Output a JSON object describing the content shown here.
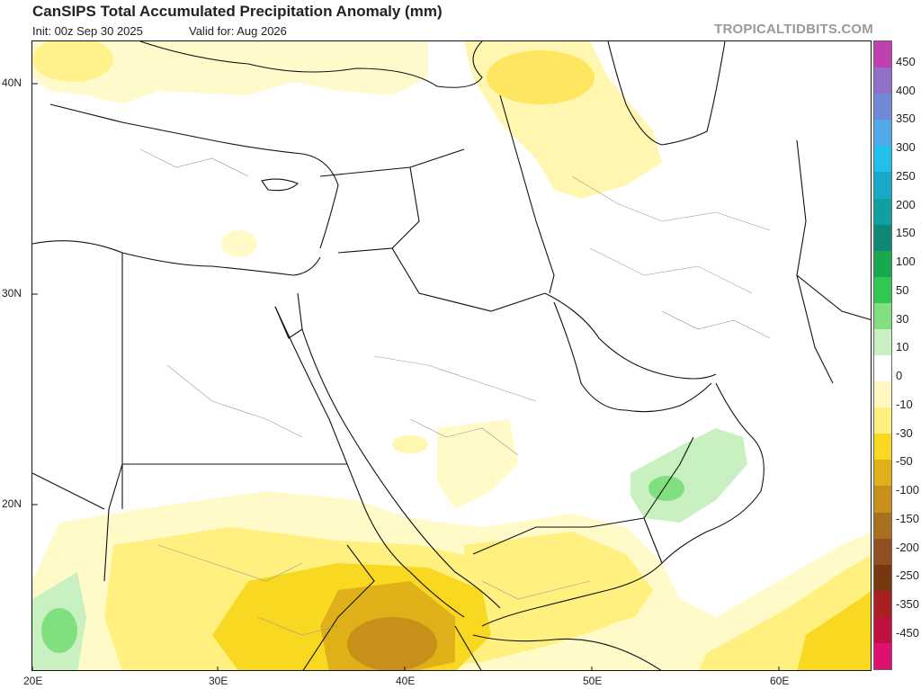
{
  "header": {
    "title": "CanSIPS Total Accumulated Precipitation Anomaly (mm)",
    "init": "Init: 00z Sep 30 2025",
    "valid": "Valid for: Aug 2026",
    "credit": "TROPICALTIDBITS.COM"
  },
  "axes": {
    "lat_labels": [
      "40N",
      "30N",
      "20N"
    ],
    "lon_labels": [
      "20E",
      "30E",
      "40E",
      "50E",
      "60E"
    ]
  },
  "colorbar": {
    "labels": [
      "450",
      "400",
      "350",
      "300",
      "250",
      "200",
      "150",
      "100",
      "50",
      "30",
      "10",
      "0",
      "-10",
      "-30",
      "-50",
      "-100",
      "-150",
      "-200",
      "-250",
      "-350",
      "-450"
    ],
    "colors": [
      "#c040b0",
      "#9070c8",
      "#7088d8",
      "#50a8e8",
      "#20c0e8",
      "#18a8c8",
      "#10a0a0",
      "#108878",
      "#18a850",
      "#30c850",
      "#80e080",
      "#c8f0c0",
      "#ffffff",
      "#fff8c0",
      "#fff080",
      "#f8d820",
      "#e0b018",
      "#c89018",
      "#a87020",
      "#905020",
      "#783810",
      "#a82020",
      "#c01040",
      "#e01070"
    ]
  },
  "anomaly_regions": [
    {
      "name": "dry-turkey-balkans",
      "value": -10
    },
    {
      "name": "dry-caucasus-iran",
      "value": -10
    },
    {
      "name": "dry-sahel-east-africa",
      "value": -10
    },
    {
      "name": "dry-ethiopia-core",
      "value": -50
    },
    {
      "name": "dry-yemen",
      "value": -10
    },
    {
      "name": "wet-oman",
      "value": 10
    },
    {
      "name": "wet-central-africa",
      "value": 10
    }
  ]
}
